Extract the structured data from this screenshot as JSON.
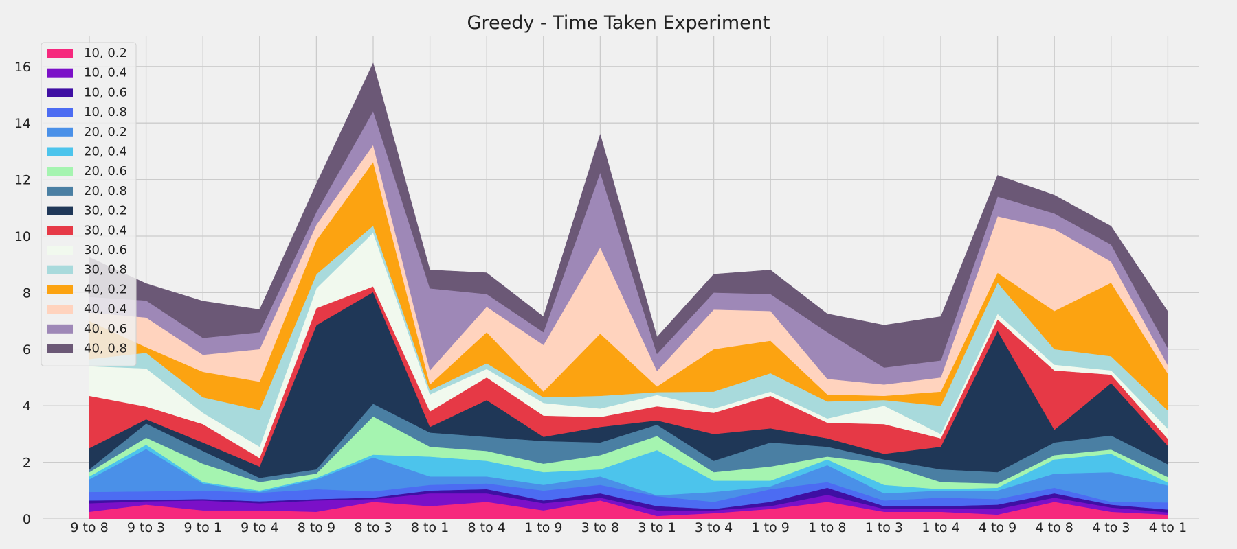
{
  "chart_data": {
    "type": "area",
    "stacked": true,
    "title": "Greedy - Time Taken Experiment",
    "xlabel": "",
    "ylabel": "",
    "ylim": [
      0,
      17
    ],
    "yticks": [
      0,
      2,
      4,
      6,
      8,
      10,
      12,
      14,
      16
    ],
    "grid": true,
    "legend_position": "top-left",
    "categories": [
      "9 to 8",
      "9 to 3",
      "9 to 1",
      "9 to 4",
      "8 to 9",
      "8 to 3",
      "8 to 1",
      "8 to 4",
      "1 to 9",
      "3 to 8",
      "3 to 1",
      "3 to 4",
      "1 to 9",
      "1 to 8",
      "1 to 3",
      "1 to 4",
      "4 to 9",
      "4 to 8",
      "4 to 3",
      "4 to 1"
    ],
    "series": [
      {
        "name": "10, 0.2",
        "color": "#f6287d",
        "values": [
          0.25,
          0.5,
          0.3,
          0.3,
          0.25,
          0.6,
          0.45,
          0.6,
          0.3,
          0.65,
          0.1,
          0.2,
          0.35,
          0.6,
          0.25,
          0.25,
          0.15,
          0.6,
          0.25,
          0.15
        ]
      },
      {
        "name": "10, 0.4",
        "color": "#7b10c8",
        "values": [
          0.3,
          0.12,
          0.35,
          0.25,
          0.4,
          0.1,
          0.45,
          0.3,
          0.25,
          0.1,
          0.2,
          0.1,
          0.1,
          0.25,
          0.1,
          0.1,
          0.2,
          0.15,
          0.15,
          0.08
        ]
      },
      {
        "name": "10, 0.6",
        "color": "#3f0fa3",
        "values": [
          0.1,
          0.05,
          0.05,
          0.07,
          0.05,
          0.05,
          0.1,
          0.15,
          0.1,
          0.15,
          0.15,
          0.05,
          0.15,
          0.25,
          0.1,
          0.1,
          0.15,
          0.15,
          0.1,
          0.1
        ]
      },
      {
        "name": "10, 0.8",
        "color": "#4c6cf2",
        "values": [
          0.3,
          0.3,
          0.3,
          0.3,
          0.35,
          0.22,
          0.2,
          0.2,
          0.35,
          0.3,
          0.35,
          0.25,
          0.45,
          0.2,
          0.2,
          0.3,
          0.2,
          0.2,
          0.1,
          0.25
        ]
      },
      {
        "name": "20, 0.2",
        "color": "#4a90e8",
        "values": [
          0.45,
          1.5,
          0.25,
          0.03,
          0.35,
          1.2,
          0.3,
          0.25,
          0.2,
          0.3,
          0.03,
          0.35,
          0.1,
          0.6,
          0.25,
          0.25,
          0.3,
          0.5,
          1.05,
          0.6
        ]
      },
      {
        "name": "20, 0.4",
        "color": "#4cc4ec",
        "values": [
          0.1,
          0.15,
          0.05,
          0.05,
          0.05,
          0.1,
          0.7,
          0.55,
          0.45,
          0.25,
          1.6,
          0.4,
          0.2,
          0.2,
          0.3,
          0.05,
          0.1,
          0.5,
          0.65,
          0.1
        ]
      },
      {
        "name": "20, 0.6",
        "color": "#a5f4b0",
        "values": [
          0.15,
          0.25,
          0.65,
          0.3,
          0.15,
          1.35,
          0.35,
          0.35,
          0.3,
          0.5,
          0.5,
          0.3,
          0.5,
          0.1,
          0.75,
          0.25,
          0.15,
          0.15,
          0.15,
          0.2
        ]
      },
      {
        "name": "20, 0.8",
        "color": "#4a7fa3",
        "values": [
          0.1,
          0.5,
          0.45,
          0.15,
          0.15,
          0.45,
          0.5,
          0.5,
          0.8,
          0.45,
          0.4,
          0.4,
          0.85,
          0.35,
          0.15,
          0.45,
          0.4,
          0.45,
          0.5,
          0.45
        ]
      },
      {
        "name": "30, 0.2",
        "color": "#1f3757",
        "values": [
          0.75,
          0.15,
          0.3,
          0.4,
          5.1,
          3.95,
          0.2,
          1.3,
          0.15,
          0.55,
          0.15,
          0.95,
          0.5,
          0.3,
          0.2,
          0.8,
          5.0,
          0.45,
          1.85,
          0.65
        ]
      },
      {
        "name": "30, 0.4",
        "color": "#e63946",
        "values": [
          1.85,
          0.45,
          0.65,
          0.3,
          0.6,
          0.2,
          0.55,
          0.8,
          0.75,
          0.35,
          0.5,
          0.75,
          1.15,
          0.55,
          1.05,
          0.3,
          0.4,
          2.1,
          0.3,
          0.25
        ]
      },
      {
        "name": "30, 0.6",
        "color": "#f1f9ee",
        "values": [
          1.05,
          1.35,
          0.4,
          0.4,
          0.7,
          1.9,
          0.6,
          0.3,
          0.45,
          0.3,
          0.4,
          0.15,
          0.15,
          0.15,
          0.65,
          0.15,
          0.2,
          0.2,
          0.15,
          0.35
        ]
      },
      {
        "name": "30, 0.8",
        "color": "#a8dadc",
        "values": [
          0.25,
          0.55,
          0.55,
          1.3,
          0.5,
          0.25,
          0.15,
          0.2,
          0.2,
          0.45,
          0.1,
          0.6,
          0.65,
          0.6,
          0.2,
          1.0,
          1.1,
          0.55,
          0.5,
          0.65
        ]
      },
      {
        "name": "40, 0.2",
        "color": "#fca311",
        "values": [
          1.35,
          0.2,
          0.9,
          1.0,
          1.2,
          2.25,
          0.2,
          1.1,
          0.2,
          2.2,
          0.2,
          1.5,
          1.15,
          0.25,
          0.15,
          0.5,
          0.35,
          1.35,
          2.6,
          1.3
        ]
      },
      {
        "name": "40, 0.4",
        "color": "#ffd3be",
        "values": [
          0.3,
          1.05,
          0.6,
          1.15,
          0.55,
          0.6,
          0.5,
          0.9,
          1.65,
          3.05,
          0.55,
          1.4,
          1.05,
          0.55,
          0.4,
          0.5,
          2.0,
          2.9,
          0.75,
          0.3
        ]
      },
      {
        "name": "40, 0.6",
        "color": "#9e88b7",
        "values": [
          0.55,
          0.6,
          0.6,
          0.6,
          0.45,
          1.2,
          2.9,
          0.45,
          0.45,
          2.65,
          0.6,
          0.6,
          0.6,
          1.65,
          0.6,
          0.6,
          0.7,
          0.55,
          0.6,
          0.6
        ]
      },
      {
        "name": "40, 0.8",
        "color": "#6b5876",
        "values": [
          1.4,
          0.6,
          1.3,
          0.8,
          1.0,
          1.7,
          0.65,
          0.75,
          0.55,
          1.35,
          0.6,
          0.65,
          0.85,
          0.65,
          1.5,
          1.55,
          0.75,
          0.65,
          0.65,
          1.3
        ]
      }
    ]
  }
}
